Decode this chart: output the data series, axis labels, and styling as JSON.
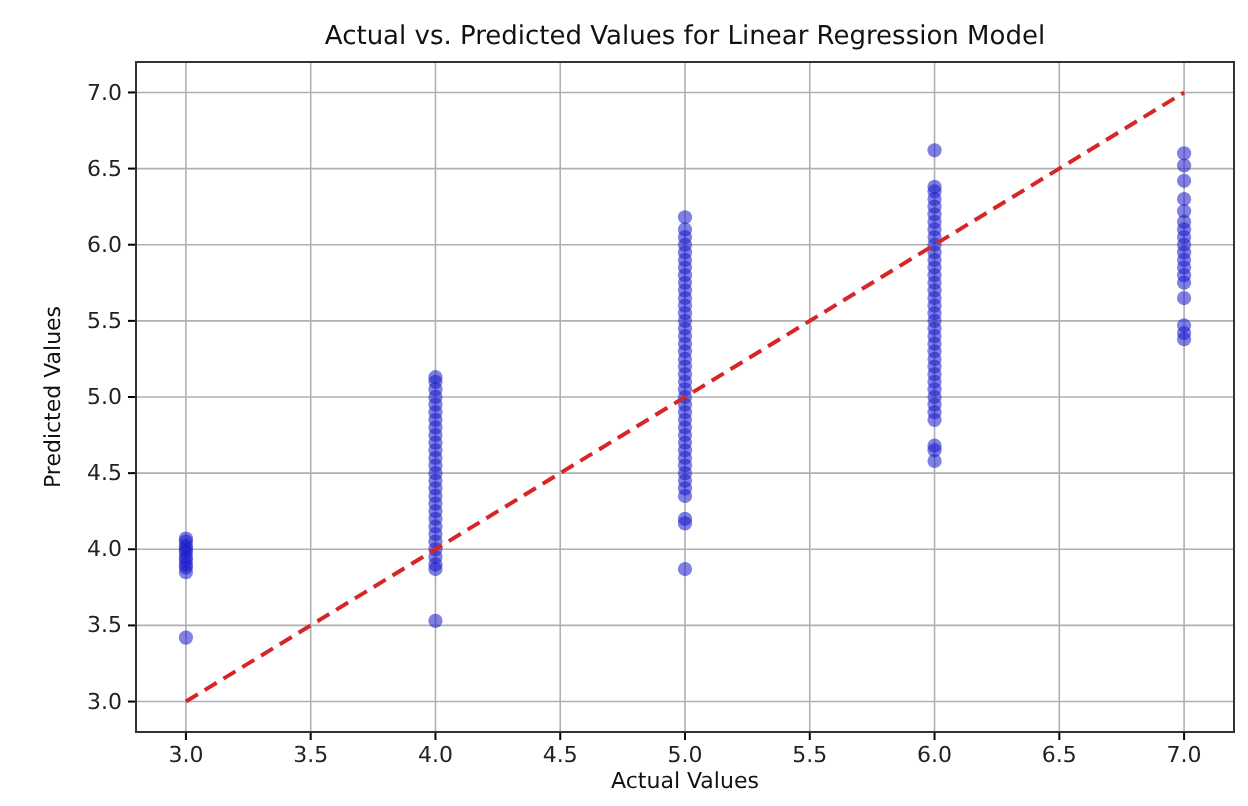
{
  "chart_data": {
    "type": "scatter",
    "title": "Actual vs. Predicted Values for Linear Regression Model",
    "xlabel": "Actual Values",
    "ylabel": "Predicted Values",
    "xlim": [
      2.8,
      7.2
    ],
    "xticks": [
      {
        "value": 3,
        "label": "3.0"
      },
      {
        "value": 3.5,
        "label": "3.5"
      },
      {
        "value": 4,
        "label": "4.0"
      },
      {
        "value": 4.5,
        "label": "4.5"
      },
      {
        "value": 5,
        "label": "5.0"
      },
      {
        "value": 5.5,
        "label": "5.5"
      },
      {
        "value": 6,
        "label": "6.0"
      },
      {
        "value": 6.5,
        "label": "6.5"
      },
      {
        "value": 7,
        "label": "7.0"
      }
    ],
    "ylim": [
      2.8,
      7.2
    ],
    "yticks": [
      {
        "value": 3,
        "label": "3.0"
      },
      {
        "value": 3.5,
        "label": "3.5"
      },
      {
        "value": 4,
        "label": "4.0"
      },
      {
        "value": 4.5,
        "label": "4.5"
      },
      {
        "value": 5,
        "label": "5.0"
      },
      {
        "value": 5.5,
        "label": "5.5"
      },
      {
        "value": 6,
        "label": "6.0"
      },
      {
        "value": 6.5,
        "label": "6.5"
      },
      {
        "value": 7,
        "label": "7.0"
      }
    ],
    "grid": true,
    "series": [
      {
        "marker": "circle",
        "color": "#1a1acc",
        "x": [
          3,
          3,
          3,
          3,
          3,
          3,
          3,
          3,
          3,
          3,
          3,
          4,
          4,
          4,
          4,
          4,
          4,
          4,
          4,
          4,
          4,
          4,
          4,
          4,
          4,
          4,
          4,
          4,
          4,
          4,
          4,
          4,
          4,
          4,
          4,
          4,
          4,
          4,
          4,
          5,
          5,
          5,
          5,
          5,
          5,
          5,
          5,
          5,
          5,
          5,
          5,
          5,
          5,
          5,
          5,
          5,
          5,
          5,
          5,
          5,
          5,
          5,
          5,
          5,
          5,
          5,
          5,
          5,
          5,
          5,
          5,
          5,
          5,
          5,
          5,
          5,
          5,
          5,
          5,
          6,
          6,
          6,
          6,
          6,
          6,
          6,
          6,
          6,
          6,
          6,
          6,
          6,
          6,
          6,
          6,
          6,
          6,
          6,
          6,
          6,
          6,
          6,
          6,
          6,
          6,
          6,
          6,
          6,
          6,
          6,
          6,
          6,
          6,
          6,
          6,
          7,
          7,
          7,
          7,
          7,
          7,
          7,
          7,
          7,
          7,
          7,
          7,
          7,
          7,
          7,
          7,
          7,
          7
        ],
        "values": [
          3.42,
          3.85,
          3.88,
          3.9,
          3.93,
          3.95,
          3.98,
          4.0,
          4.02,
          4.05,
          4.07,
          3.53,
          3.87,
          3.9,
          3.95,
          4.0,
          4.05,
          4.1,
          4.15,
          4.2,
          4.25,
          4.3,
          4.35,
          4.4,
          4.45,
          4.5,
          4.55,
          4.6,
          4.65,
          4.7,
          4.75,
          4.8,
          4.85,
          4.9,
          4.95,
          5.0,
          5.05,
          5.1,
          5.13,
          3.87,
          4.17,
          4.2,
          4.35,
          4.4,
          4.45,
          4.5,
          4.55,
          4.6,
          4.65,
          4.7,
          4.75,
          4.8,
          4.85,
          4.9,
          4.95,
          5.0,
          5.05,
          5.1,
          5.15,
          5.2,
          5.25,
          5.3,
          5.35,
          5.4,
          5.45,
          5.5,
          5.55,
          5.6,
          5.65,
          5.7,
          5.75,
          5.8,
          5.85,
          5.9,
          5.95,
          6.0,
          6.05,
          6.1,
          6.18,
          4.58,
          4.65,
          4.68,
          4.85,
          4.9,
          4.95,
          5.0,
          5.05,
          5.1,
          5.15,
          5.2,
          5.25,
          5.3,
          5.35,
          5.4,
          5.45,
          5.5,
          5.55,
          5.6,
          5.65,
          5.7,
          5.75,
          5.8,
          5.85,
          5.9,
          5.95,
          6.0,
          6.05,
          6.1,
          6.15,
          6.2,
          6.25,
          6.3,
          6.35,
          6.38,
          6.62,
          5.38,
          5.42,
          5.47,
          5.65,
          5.75,
          5.8,
          5.85,
          5.9,
          5.95,
          6.0,
          6.05,
          6.1,
          6.15,
          6.22,
          6.3,
          6.42,
          6.52,
          6.6
        ]
      },
      {
        "type": "line",
        "marker": "none",
        "color": "#d62728",
        "line_style": "dashed",
        "x": [
          3,
          7
        ],
        "values": [
          3,
          7
        ]
      }
    ]
  }
}
